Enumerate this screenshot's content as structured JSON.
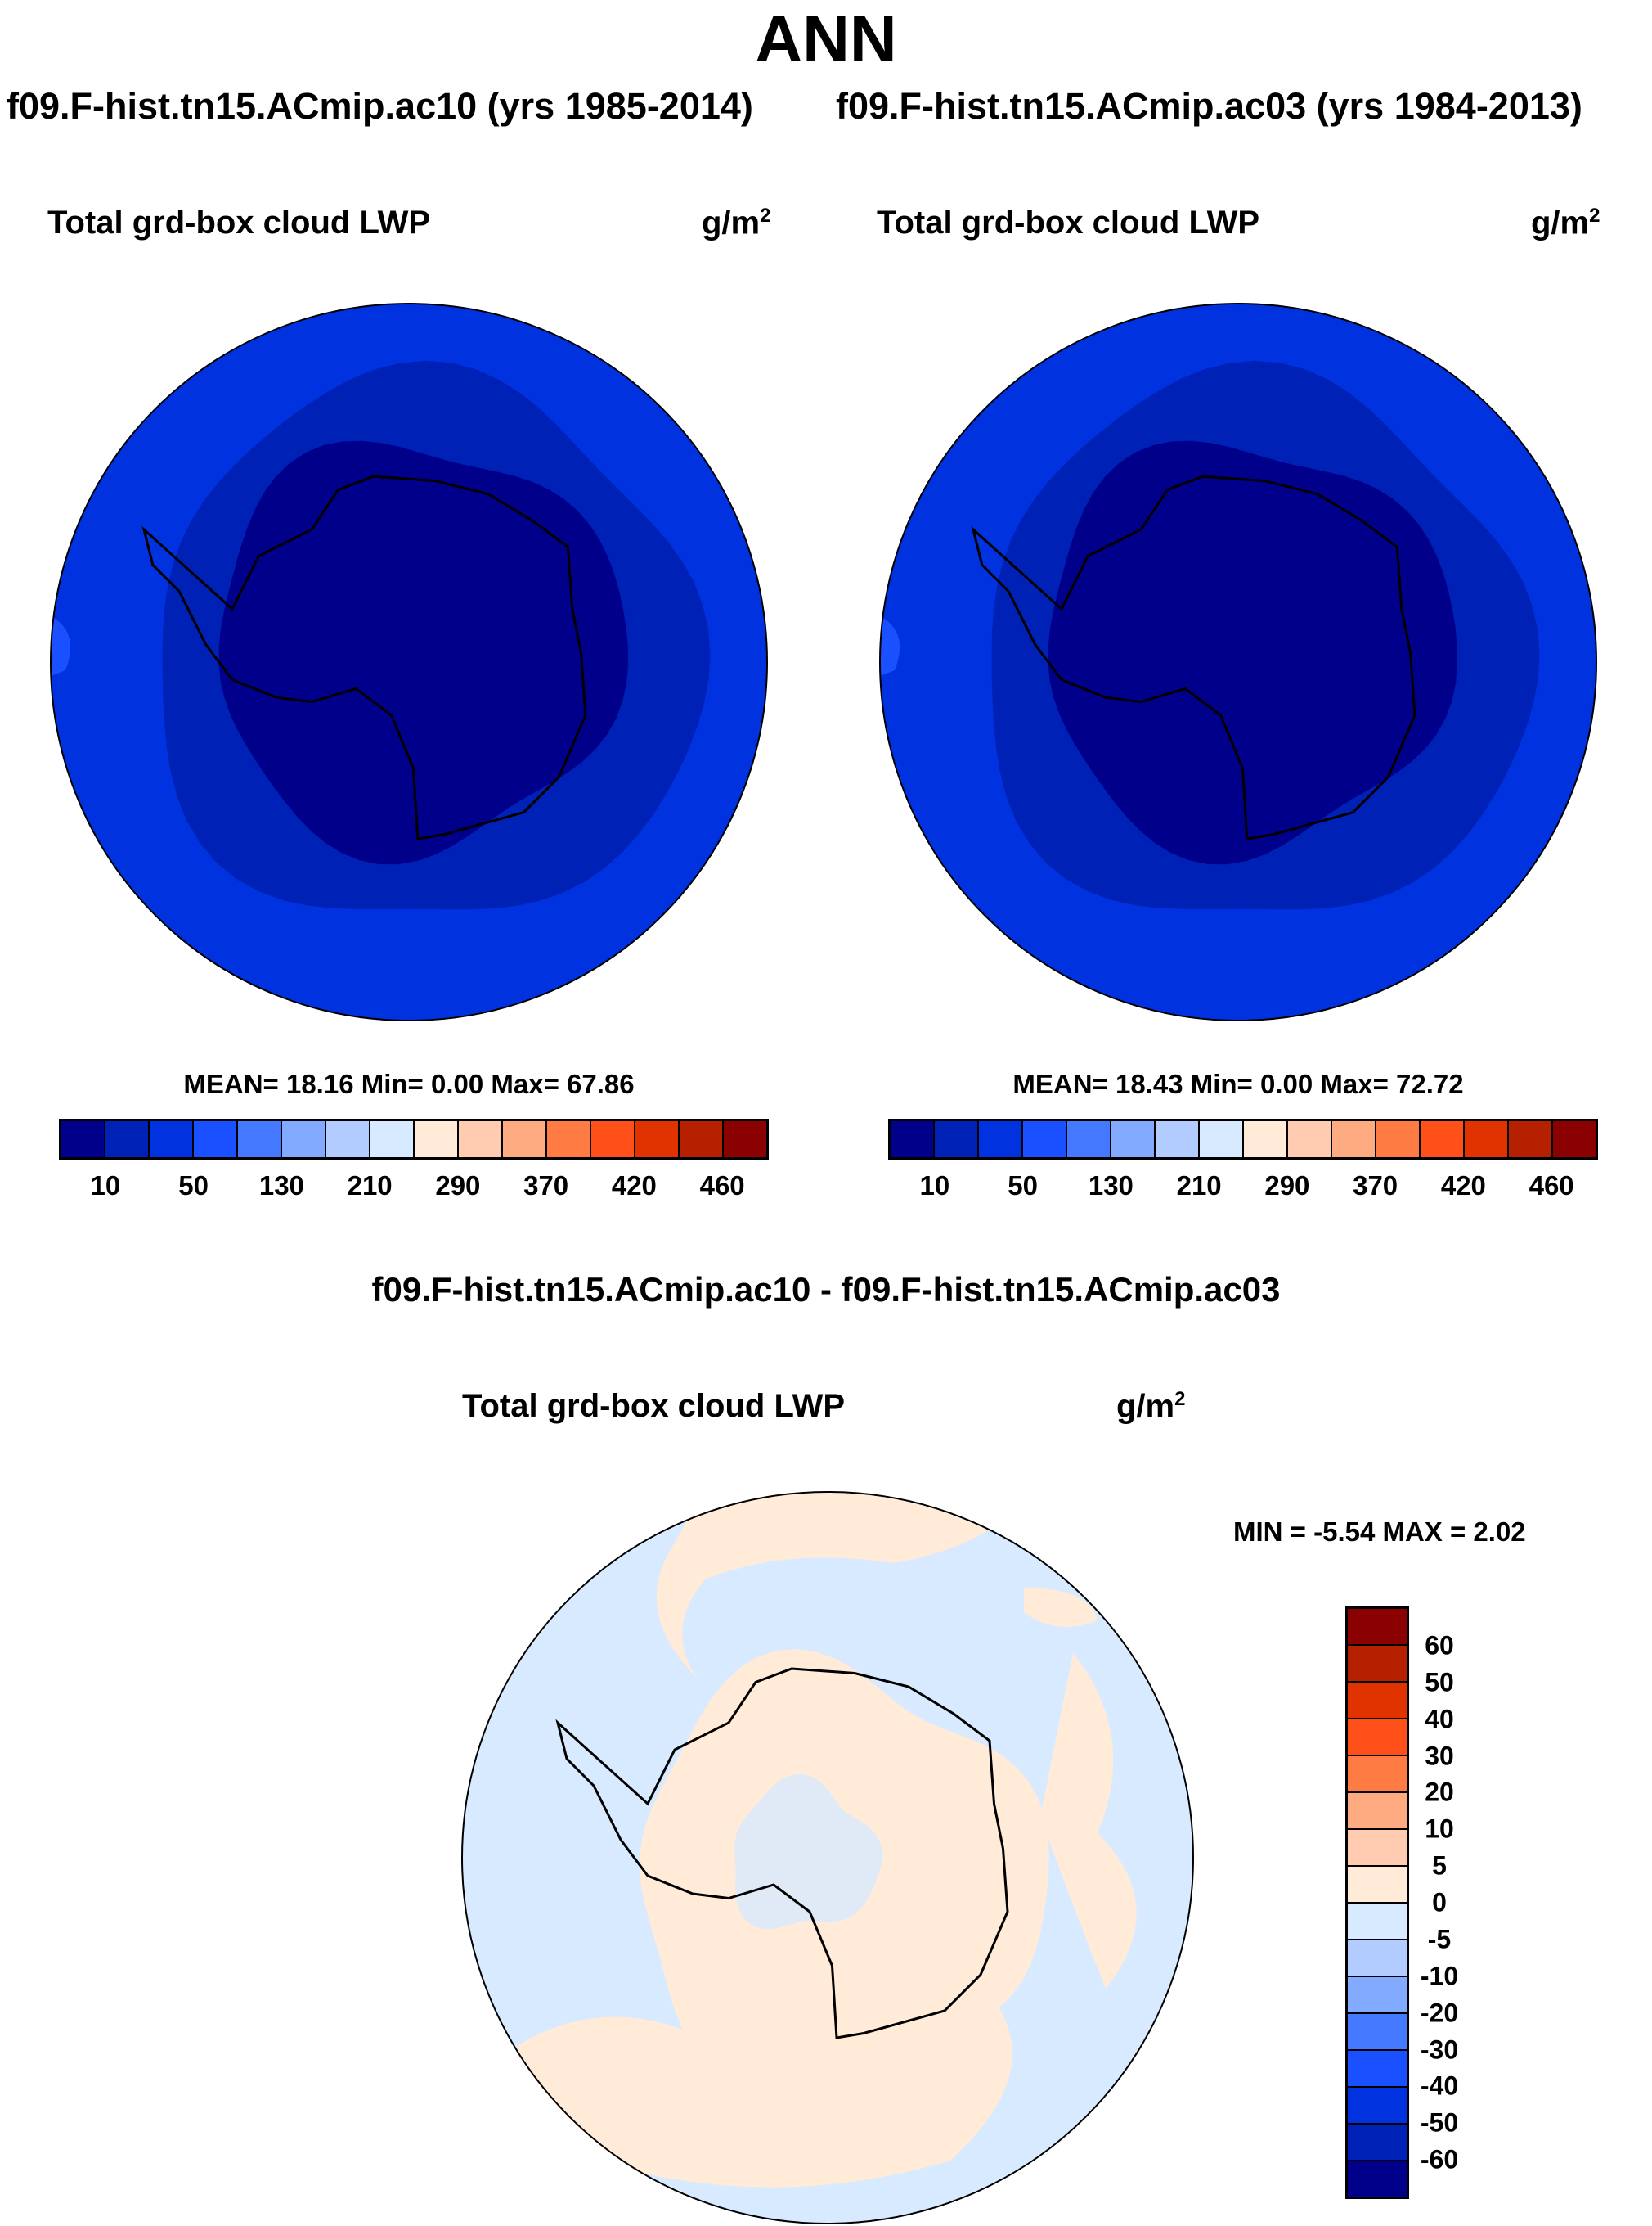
{
  "page": {
    "title": "ANN",
    "subtitle_left": "f09.F-hist.tn15.ACmip.ac10 (yrs 1985-2014)",
    "subtitle_right": "f09.F-hist.tn15.ACmip.ac03 (yrs 1984-2013)",
    "diff_title": "f09.F-hist.tn15.ACmip.ac10 - f09.F-hist.tn15.ACmip.ac03"
  },
  "chart_data": [
    {
      "type": "heatmap",
      "projection": "south-polar-stereographic",
      "title": "Total grd-box cloud LWP",
      "units": "g/m",
      "units_sup": "2",
      "case": "f09.F-hist.tn15.ACmip.ac10 (yrs 1985-2014)",
      "stats": "MEAN=  18.16  Min=   0.00  Max=  67.86",
      "mean": 18.16,
      "min": 0.0,
      "max": 67.86,
      "colorbar_labels": [
        "10",
        "50",
        "130",
        "210",
        "290",
        "370",
        "420",
        "460"
      ],
      "colors": [
        "#00008b",
        "#0021b5",
        "#0033df",
        "#1a50ff",
        "#4479ff",
        "#82aaff",
        "#b3ccff",
        "#d8eaff",
        "#ffebd8",
        "#ffccb2",
        "#ffab82",
        "#ff7b44",
        "#ff501a",
        "#e03300",
        "#b52100",
        "#8b0000"
      ]
    },
    {
      "type": "heatmap",
      "projection": "south-polar-stereographic",
      "title": "Total grd-box cloud LWP",
      "units": "g/m",
      "units_sup": "2",
      "case": "f09.F-hist.tn15.ACmip.ac03 (yrs 1984-2013)",
      "stats": "MEAN=  18.43  Min=   0.00  Max=  72.72",
      "mean": 18.43,
      "min": 0.0,
      "max": 72.72,
      "colorbar_labels": [
        "10",
        "50",
        "130",
        "210",
        "290",
        "370",
        "420",
        "460"
      ]
    },
    {
      "type": "heatmap",
      "projection": "south-polar-stereographic",
      "title": "Total grd-box cloud LWP",
      "units": "g/m",
      "units_sup": "2",
      "case": "f09.F-hist.tn15.ACmip.ac10 - f09.F-hist.tn15.ACmip.ac03",
      "stats": "MIN =  -5.54 MAX =   2.02",
      "min": -5.54,
      "max": 2.02,
      "colorbar_labels": [
        "60",
        "50",
        "40",
        "30",
        "20",
        "10",
        "5",
        "0",
        "-5",
        "-10",
        "-20",
        "-30",
        "-40",
        "-50",
        "-60"
      ],
      "colors_top_to_bottom": [
        "#8b0000",
        "#b52100",
        "#e03300",
        "#ff501a",
        "#ff7b44",
        "#ffab82",
        "#ffccb2",
        "#ffebd8",
        "#d8eaff",
        "#b3ccff",
        "#82aaff",
        "#4479ff",
        "#1a50ff",
        "#0033df",
        "#0021b5",
        "#00008b"
      ]
    }
  ]
}
